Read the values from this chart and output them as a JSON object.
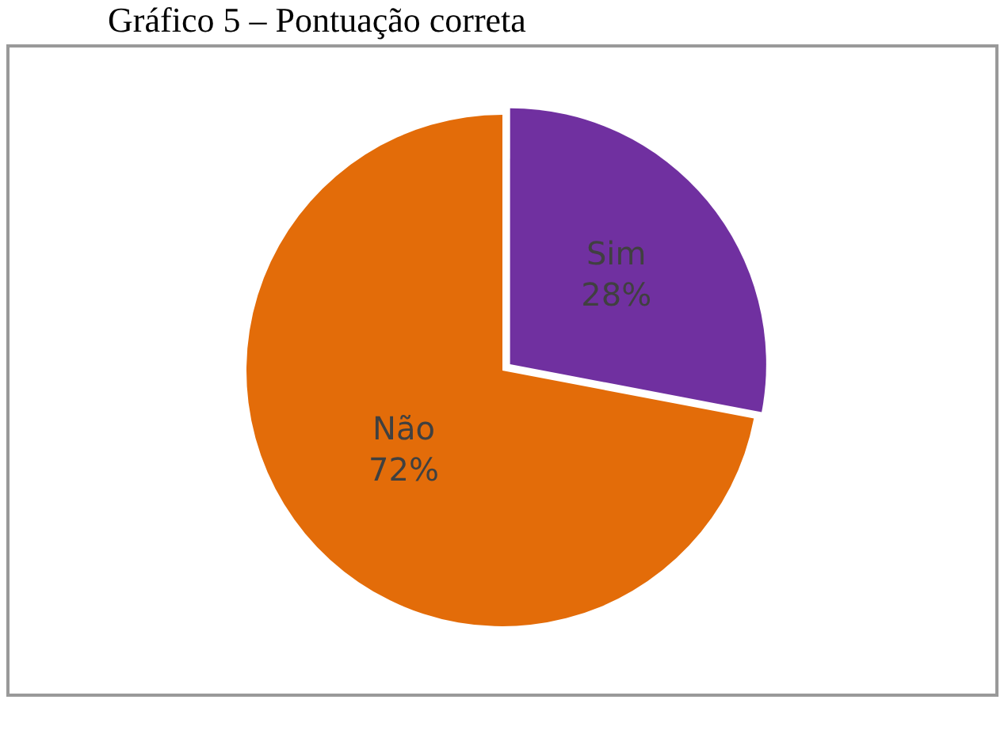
{
  "chart_data": {
    "type": "pie",
    "title": "Gráfico 5 – Pontuação correta",
    "categories": [
      "Sim",
      "Não"
    ],
    "values": [
      28,
      72
    ],
    "value_labels": [
      "28%",
      "72%"
    ],
    "colors": [
      "#7030a0",
      "#e36c09"
    ]
  }
}
